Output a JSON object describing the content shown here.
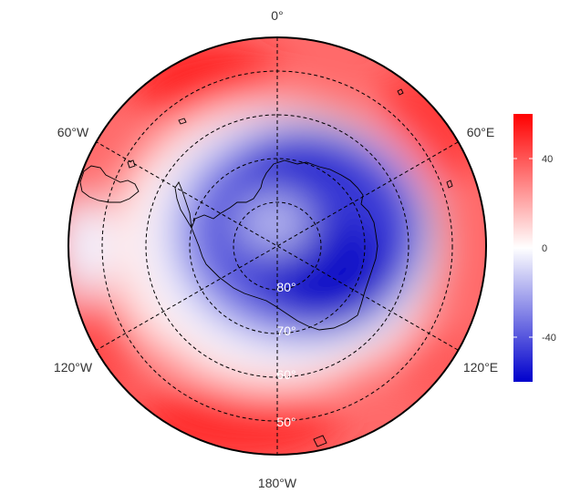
{
  "map": {
    "projection": "south-polar-stereographic",
    "longitude_labels": [
      "0°",
      "60°E",
      "120°E",
      "180°W",
      "120°W",
      "60°W"
    ],
    "latitude_labels": [
      "80°",
      "70°",
      "60°",
      "50°"
    ],
    "latitude_circles": [
      80,
      70,
      60,
      50
    ],
    "meridian_lines_deg": [
      0,
      60,
      120
    ],
    "grid_style": "dashed",
    "coastline": "Antarctica and southern South America"
  },
  "legend": {
    "ticks": [
      "40",
      "0",
      "-40"
    ],
    "tick_values": [
      40,
      0,
      -40
    ],
    "range": [
      -60,
      60
    ],
    "colors": {
      "high": "#ff0000",
      "mid": "#ffffff",
      "low": "#0000cc"
    }
  }
}
